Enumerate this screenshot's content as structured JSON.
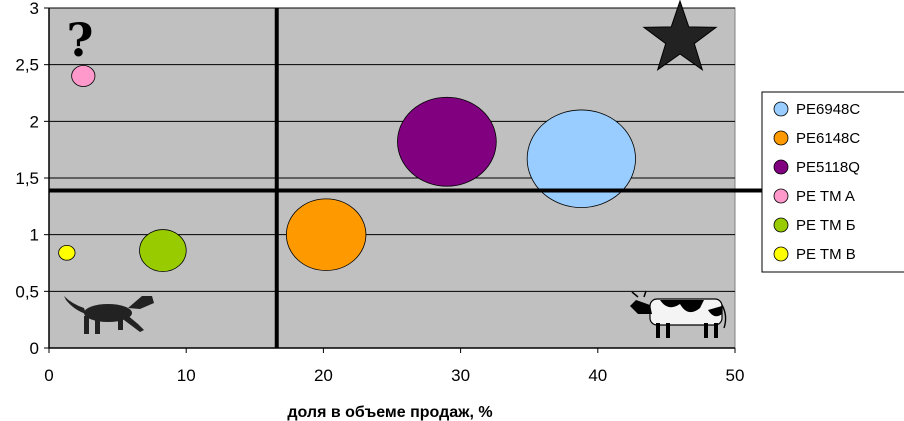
{
  "chart_data": {
    "type": "bubble",
    "title": "",
    "xlabel": "доля в объеме продаж, %",
    "ylabel": "",
    "xlim": [
      0,
      50
    ],
    "ylim": [
      0,
      3
    ],
    "x_ticks": [
      "0",
      "10",
      "20",
      "30",
      "40",
      "50"
    ],
    "y_ticks": [
      "0",
      "0,5",
      "1",
      "1,5",
      "2",
      "2,5",
      "3"
    ],
    "grid": "horizontal",
    "background": "#c0c0c0",
    "legend_position": "right",
    "divider_lines": {
      "x": 16.6,
      "y": 1.39
    },
    "series": [
      {
        "name": "PE6948C",
        "x": 38.8,
        "y": 1.67,
        "size": 7.9,
        "color": "#99ccff"
      },
      {
        "name": "PE6148C",
        "x": 20.2,
        "y": 1.0,
        "size": 5.8,
        "color": "#ff9900"
      },
      {
        "name": "PE5118Q",
        "x": 29.0,
        "y": 1.82,
        "size": 7.2,
        "color": "#800080"
      },
      {
        "name": "PE TM A",
        "x": 2.5,
        "y": 2.4,
        "size": 1.7,
        "color": "#ff99cc"
      },
      {
        "name": "PE TM Б",
        "x": 8.3,
        "y": 0.86,
        "size": 3.4,
        "color": "#99cc00"
      },
      {
        "name": "PE TM B",
        "x": 1.3,
        "y": 0.84,
        "size": 1.2,
        "color": "#ffff00"
      }
    ],
    "quadrant_icons": {
      "top_left": "?",
      "top_right": "star-icon",
      "bottom_left": "dog-icon",
      "bottom_right": "cow-icon"
    }
  }
}
